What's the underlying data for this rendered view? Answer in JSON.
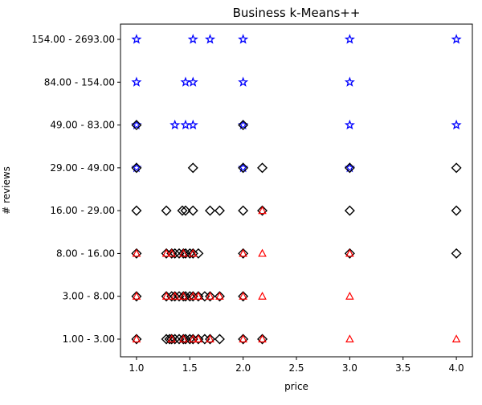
{
  "chart_data": {
    "type": "scatter",
    "title": "Business k-Means++",
    "xlabel": "price",
    "ylabel": "# reviews",
    "xlim": [
      0.85,
      4.15
    ],
    "xticks": [
      "1.0",
      "1.5",
      "2.0",
      "2.5",
      "3.0",
      "3.5",
      "4.0"
    ],
    "xtick_values": [
      1.0,
      1.5,
      2.0,
      2.5,
      3.0,
      3.5,
      4.0
    ],
    "categories": [
      "1.00 - 3.00",
      "3.00 - 8.00",
      "8.00 - 16.00",
      "16.00 - 29.00",
      "29.00 - 49.00",
      "49.00 - 83.00",
      "84.00 - 154.00",
      "154.00 - 2693.00"
    ],
    "grid": false,
    "legend": "none",
    "series": [
      {
        "marker": "star",
        "color": "#0000ff",
        "points": [
          [
            1.0,
            "154.00 - 2693.00"
          ],
          [
            1.53,
            "154.00 - 2693.00"
          ],
          [
            1.69,
            "154.00 - 2693.00"
          ],
          [
            2.0,
            "154.00 - 2693.00"
          ],
          [
            3.0,
            "154.00 - 2693.00"
          ],
          [
            4.0,
            "154.00 - 2693.00"
          ],
          [
            1.0,
            "84.00 - 154.00"
          ],
          [
            1.46,
            "84.00 - 154.00"
          ],
          [
            1.53,
            "84.00 - 154.00"
          ],
          [
            2.0,
            "84.00 - 154.00"
          ],
          [
            3.0,
            "84.00 - 154.00"
          ],
          [
            1.0,
            "49.00 - 83.00"
          ],
          [
            1.36,
            "49.00 - 83.00"
          ],
          [
            1.46,
            "49.00 - 83.00"
          ],
          [
            1.53,
            "49.00 - 83.00"
          ],
          [
            2.0,
            "49.00 - 83.00"
          ],
          [
            3.0,
            "49.00 - 83.00"
          ],
          [
            4.0,
            "49.00 - 83.00"
          ],
          [
            1.0,
            "29.00 - 49.00"
          ],
          [
            2.0,
            "29.00 - 49.00"
          ],
          [
            3.0,
            "29.00 - 49.00"
          ]
        ]
      },
      {
        "marker": "diamond",
        "color": "#000000",
        "points": [
          [
            1.0,
            "49.00 - 83.00"
          ],
          [
            2.0,
            "49.00 - 83.00"
          ],
          [
            1.0,
            "29.00 - 49.00"
          ],
          [
            1.53,
            "29.00 - 49.00"
          ],
          [
            2.0,
            "29.00 - 49.00"
          ],
          [
            2.18,
            "29.00 - 49.00"
          ],
          [
            3.0,
            "29.00 - 49.00"
          ],
          [
            4.0,
            "29.00 - 49.00"
          ],
          [
            1.0,
            "16.00 - 29.00"
          ],
          [
            1.28,
            "16.00 - 29.00"
          ],
          [
            1.43,
            "16.00 - 29.00"
          ],
          [
            1.46,
            "16.00 - 29.00"
          ],
          [
            1.53,
            "16.00 - 29.00"
          ],
          [
            1.69,
            "16.00 - 29.00"
          ],
          [
            1.78,
            "16.00 - 29.00"
          ],
          [
            2.0,
            "16.00 - 29.00"
          ],
          [
            2.18,
            "16.00 - 29.00"
          ],
          [
            3.0,
            "16.00 - 29.00"
          ],
          [
            4.0,
            "16.00 - 29.00"
          ],
          [
            1.0,
            "8.00 - 16.00"
          ],
          [
            1.28,
            "8.00 - 16.00"
          ],
          [
            1.33,
            "8.00 - 16.00"
          ],
          [
            1.36,
            "8.00 - 16.00"
          ],
          [
            1.4,
            "8.00 - 16.00"
          ],
          [
            1.44,
            "8.00 - 16.00"
          ],
          [
            1.46,
            "8.00 - 16.00"
          ],
          [
            1.5,
            "8.00 - 16.00"
          ],
          [
            1.53,
            "8.00 - 16.00"
          ],
          [
            1.58,
            "8.00 - 16.00"
          ],
          [
            2.0,
            "8.00 - 16.00"
          ],
          [
            3.0,
            "8.00 - 16.00"
          ],
          [
            4.0,
            "8.00 - 16.00"
          ],
          [
            1.0,
            "3.00 - 8.00"
          ],
          [
            1.28,
            "3.00 - 8.00"
          ],
          [
            1.33,
            "3.00 - 8.00"
          ],
          [
            1.36,
            "3.00 - 8.00"
          ],
          [
            1.4,
            "3.00 - 8.00"
          ],
          [
            1.44,
            "3.00 - 8.00"
          ],
          [
            1.46,
            "3.00 - 8.00"
          ],
          [
            1.5,
            "3.00 - 8.00"
          ],
          [
            1.53,
            "3.00 - 8.00"
          ],
          [
            1.58,
            "3.00 - 8.00"
          ],
          [
            1.64,
            "3.00 - 8.00"
          ],
          [
            1.69,
            "3.00 - 8.00"
          ],
          [
            1.78,
            "3.00 - 8.00"
          ],
          [
            2.0,
            "3.00 - 8.00"
          ],
          [
            1.0,
            "1.00 - 3.00"
          ],
          [
            1.28,
            "1.00 - 3.00"
          ],
          [
            1.31,
            "1.00 - 3.00"
          ],
          [
            1.33,
            "1.00 - 3.00"
          ],
          [
            1.36,
            "1.00 - 3.00"
          ],
          [
            1.4,
            "1.00 - 3.00"
          ],
          [
            1.44,
            "1.00 - 3.00"
          ],
          [
            1.46,
            "1.00 - 3.00"
          ],
          [
            1.5,
            "1.00 - 3.00"
          ],
          [
            1.53,
            "1.00 - 3.00"
          ],
          [
            1.58,
            "1.00 - 3.00"
          ],
          [
            1.64,
            "1.00 - 3.00"
          ],
          [
            1.69,
            "1.00 - 3.00"
          ],
          [
            1.78,
            "1.00 - 3.00"
          ],
          [
            2.0,
            "1.00 - 3.00"
          ],
          [
            2.18,
            "1.00 - 3.00"
          ]
        ]
      },
      {
        "marker": "triangle",
        "color": "#ff0000",
        "points": [
          [
            2.18,
            "16.00 - 29.00"
          ],
          [
            1.0,
            "8.00 - 16.00"
          ],
          [
            1.28,
            "8.00 - 16.00"
          ],
          [
            1.33,
            "8.00 - 16.00"
          ],
          [
            1.44,
            "8.00 - 16.00"
          ],
          [
            1.53,
            "8.00 - 16.00"
          ],
          [
            2.0,
            "8.00 - 16.00"
          ],
          [
            2.18,
            "8.00 - 16.00"
          ],
          [
            3.0,
            "8.00 - 16.00"
          ],
          [
            1.0,
            "3.00 - 8.00"
          ],
          [
            1.28,
            "3.00 - 8.00"
          ],
          [
            1.36,
            "3.00 - 8.00"
          ],
          [
            1.44,
            "3.00 - 8.00"
          ],
          [
            1.53,
            "3.00 - 8.00"
          ],
          [
            1.58,
            "3.00 - 8.00"
          ],
          [
            1.69,
            "3.00 - 8.00"
          ],
          [
            1.78,
            "3.00 - 8.00"
          ],
          [
            2.0,
            "3.00 - 8.00"
          ],
          [
            2.18,
            "3.00 - 8.00"
          ],
          [
            3.0,
            "3.00 - 8.00"
          ],
          [
            1.0,
            "1.00 - 3.00"
          ],
          [
            1.33,
            "1.00 - 3.00"
          ],
          [
            1.44,
            "1.00 - 3.00"
          ],
          [
            1.53,
            "1.00 - 3.00"
          ],
          [
            1.58,
            "1.00 - 3.00"
          ],
          [
            1.69,
            "1.00 - 3.00"
          ],
          [
            2.0,
            "1.00 - 3.00"
          ],
          [
            2.18,
            "1.00 - 3.00"
          ],
          [
            3.0,
            "1.00 - 3.00"
          ],
          [
            4.0,
            "1.00 - 3.00"
          ]
        ]
      }
    ]
  }
}
